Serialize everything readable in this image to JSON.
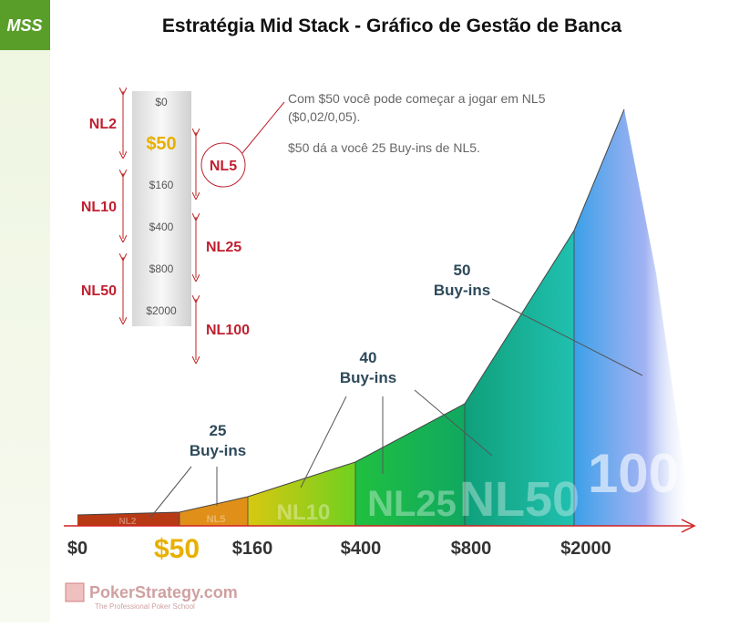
{
  "logo": "MSS",
  "title": "Estratégia Mid Stack - Gráfico de Gestão de Banca",
  "stack": {
    "chips": [
      "$0",
      "$50",
      "$160",
      "$400",
      "$800",
      "$2000"
    ],
    "limits_left": [
      "NL2",
      "NL10",
      "NL50"
    ],
    "limits_right": [
      "NL5",
      "NL25",
      "NL100"
    ]
  },
  "note": [
    "Com $50 você pode começar a jogar em NL5",
    "($0,02/0,05).",
    "$50 dá a você 25 Buy-ins de NL5."
  ],
  "axis": {
    "labels": [
      "$0",
      "$50",
      "$160",
      "$400",
      "$800",
      "$2000"
    ]
  },
  "regions": [
    "NL2",
    "NL5",
    "NL10",
    "NL25",
    "NL50",
    "100"
  ],
  "callouts": [
    {
      "number": "25",
      "text": "Buy-ins"
    },
    {
      "number": "40",
      "text": "Buy-ins"
    },
    {
      "number": "50",
      "text": "Buy-ins"
    }
  ],
  "footer": {
    "brand": "PokerStrategy.com",
    "tagline": "The Professional Poker School"
  }
}
